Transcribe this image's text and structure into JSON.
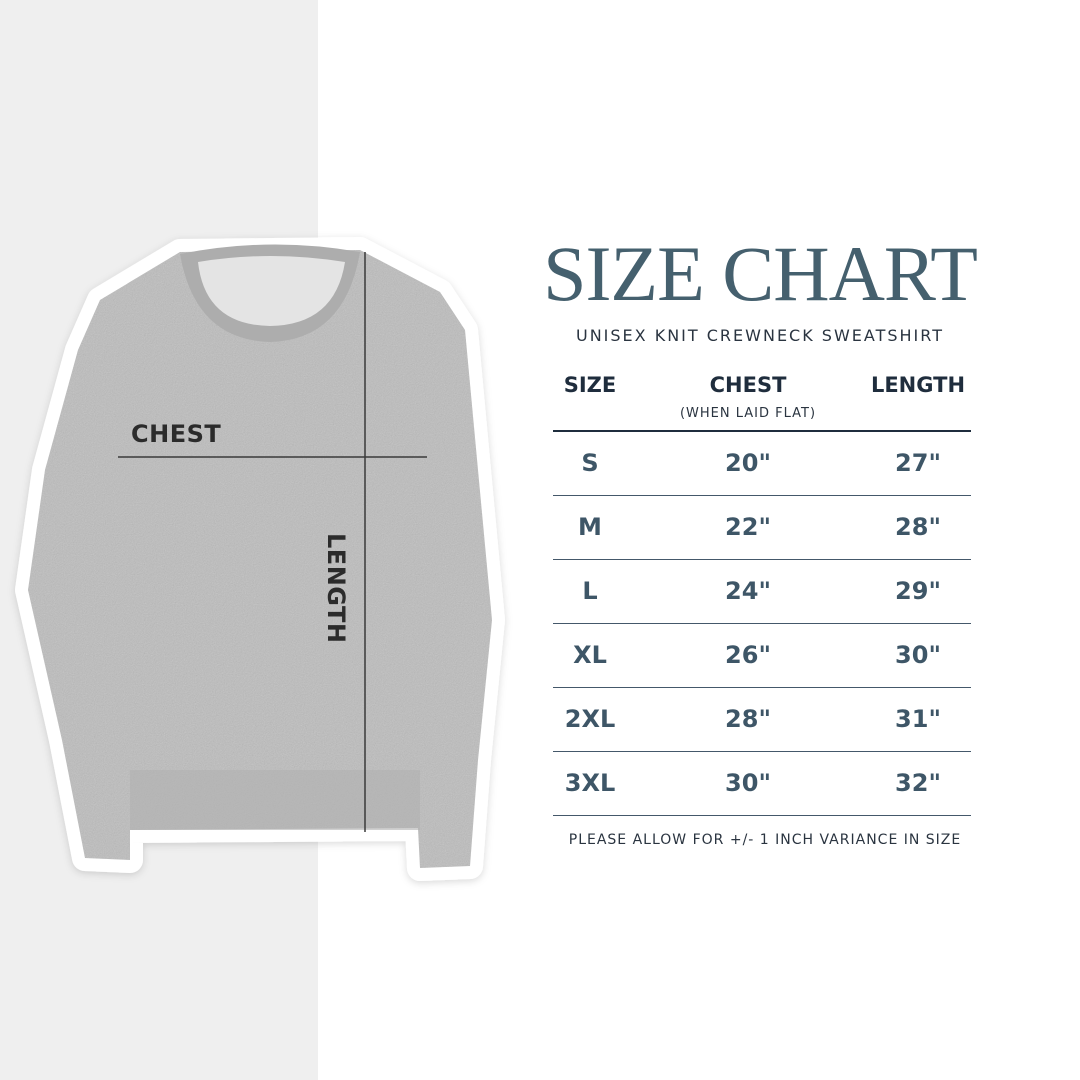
{
  "colors": {
    "accent": "#45606e",
    "value": "#3e5667",
    "panel": "#efefef",
    "garment": "#bdbdbd"
  },
  "garment": {
    "image": "gray-knit-crewneck-sweatshirt",
    "chest_label": "CHEST",
    "length_label": "LENGTH"
  },
  "title": "SIZE CHART",
  "subtitle": "UNISEX KNIT CREWNECK SWEATSHIRT",
  "table": {
    "headers": {
      "size": "SIZE",
      "chest": "CHEST",
      "chest_note": "(WHEN LAID FLAT)",
      "length": "LENGTH"
    },
    "rows": [
      {
        "size": "S",
        "chest": "20\"",
        "length": "27\""
      },
      {
        "size": "M",
        "chest": "22\"",
        "length": "28\""
      },
      {
        "size": "L",
        "chest": "24\"",
        "length": "29\""
      },
      {
        "size": "XL",
        "chest": "26\"",
        "length": "30\""
      },
      {
        "size": "2XL",
        "chest": "28\"",
        "length": "31\""
      },
      {
        "size": "3XL",
        "chest": "30\"",
        "length": "32\""
      }
    ]
  },
  "footnote": "PLEASE ALLOW FOR +/- 1 INCH VARIANCE IN SIZE"
}
